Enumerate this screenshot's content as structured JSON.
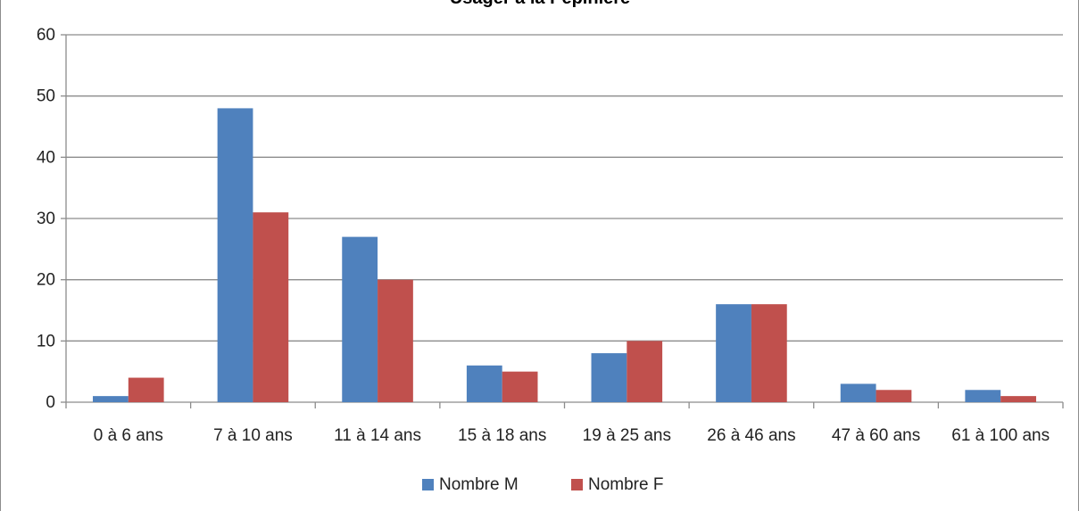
{
  "chart_data": {
    "type": "bar",
    "title": "Usager à la Pépinière",
    "xlabel": "",
    "ylabel": "",
    "categories": [
      "0 à 6 ans",
      "7 à 10 ans",
      "11 à 14 ans",
      "15 à 18 ans",
      "19 à 25 ans",
      "26 à 46 ans",
      "47 à 60 ans",
      "61 à 100 ans"
    ],
    "series": [
      {
        "name": "Nombre M",
        "color": "#4f81bd",
        "values": [
          1,
          48,
          27,
          6,
          8,
          16,
          3,
          2
        ]
      },
      {
        "name": "Nombre F",
        "color": "#c0504d",
        "values": [
          4,
          31,
          20,
          5,
          10,
          16,
          2,
          1
        ]
      }
    ],
    "ylim": [
      0,
      60
    ],
    "yticks": [
      0,
      10,
      20,
      30,
      40,
      50,
      60
    ],
    "grid": true,
    "legend": "bottom"
  }
}
